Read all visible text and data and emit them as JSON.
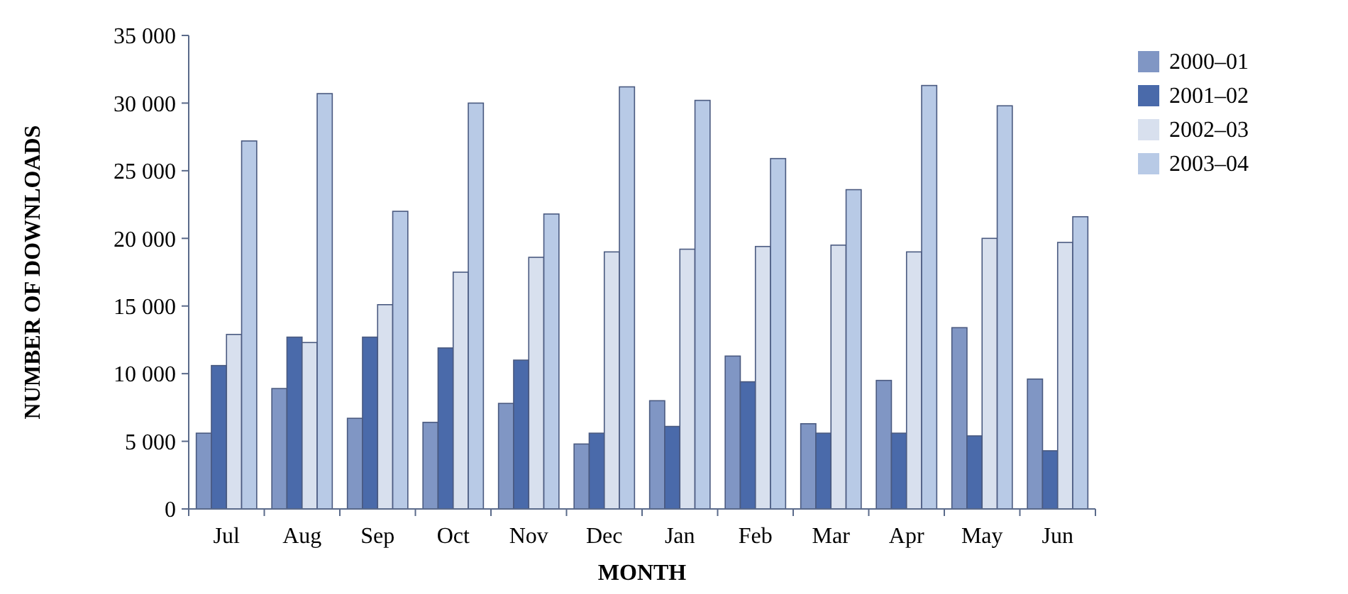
{
  "chart_data": {
    "type": "bar",
    "xlabel": "MONTH",
    "ylabel": "NUMBER OF DOWNLOADS",
    "categories": [
      "Jul",
      "Aug",
      "Sep",
      "Oct",
      "Nov",
      "Dec",
      "Jan",
      "Feb",
      "Mar",
      "Apr",
      "May",
      "Jun"
    ],
    "series": [
      {
        "name": "2000–01",
        "color": "#8096c4",
        "values": [
          5600,
          8900,
          6700,
          6400,
          7800,
          4800,
          8000,
          11300,
          6300,
          9500,
          13400,
          9600
        ]
      },
      {
        "name": "2001–02",
        "color": "#4a6aaa",
        "values": [
          10600,
          12700,
          12700,
          11900,
          11000,
          5600,
          6100,
          9400,
          5600,
          5600,
          5400,
          4300
        ]
      },
      {
        "name": "2002–03",
        "color": "#d8e0ee",
        "values": [
          12900,
          12300,
          15100,
          17500,
          18600,
          19000,
          19200,
          19400,
          19500,
          19000,
          20000,
          19700
        ]
      },
      {
        "name": "2003–04",
        "color": "#b8cae6",
        "values": [
          27200,
          30700,
          22000,
          30000,
          21800,
          31200,
          30200,
          25900,
          23600,
          31300,
          29800,
          21600
        ]
      }
    ],
    "ylim": [
      0,
      35000
    ],
    "yticks": [
      {
        "value": 0,
        "label": "0"
      },
      {
        "value": 5000,
        "label": "5 000"
      },
      {
        "value": 10000,
        "label": "10 000"
      },
      {
        "value": 15000,
        "label": "15 000"
      },
      {
        "value": 20000,
        "label": "20 000"
      },
      {
        "value": 25000,
        "label": "25 000"
      },
      {
        "value": 30000,
        "label": "30 000"
      },
      {
        "value": 35000,
        "label": "35 000"
      }
    ],
    "grid": false,
    "legend": "right"
  }
}
